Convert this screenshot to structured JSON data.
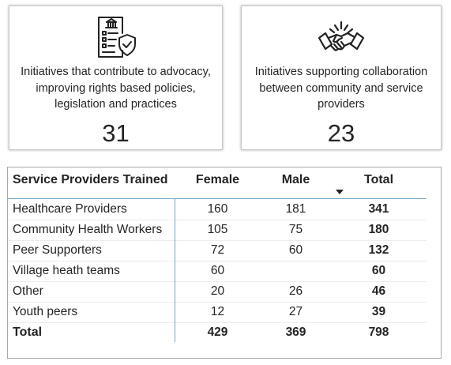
{
  "cards": [
    {
      "icon": "government-checklist-shield-icon",
      "label": "Initiatives that contribute to advocacy, improving rights based policies, legislation and practices",
      "value": "31"
    },
    {
      "icon": "handshake-icon",
      "label": "Initiatives supporting collaboration between community and service providers",
      "value": "23"
    }
  ],
  "table": {
    "headers": {
      "name": "Service Providers Trained",
      "female": "Female",
      "male": "Male",
      "total": "Total"
    },
    "sort": {
      "column": "total",
      "direction": "descending"
    },
    "rows": [
      {
        "name": "Healthcare Providers",
        "female": "160",
        "male": "181",
        "total": "341"
      },
      {
        "name": "Community Health Workers",
        "female": "105",
        "male": "75",
        "total": "180"
      },
      {
        "name": "Peer Supporters",
        "female": "72",
        "male": "60",
        "total": "132"
      },
      {
        "name": "Village heath teams",
        "female": "60",
        "male": "",
        "total": "60"
      },
      {
        "name": "Other",
        "female": "20",
        "male": "26",
        "total": "46"
      },
      {
        "name": "Youth peers",
        "female": "12",
        "male": "27",
        "total": "39"
      }
    ],
    "totals": {
      "name": "Total",
      "female": "429",
      "male": "369",
      "total": "798"
    }
  }
}
